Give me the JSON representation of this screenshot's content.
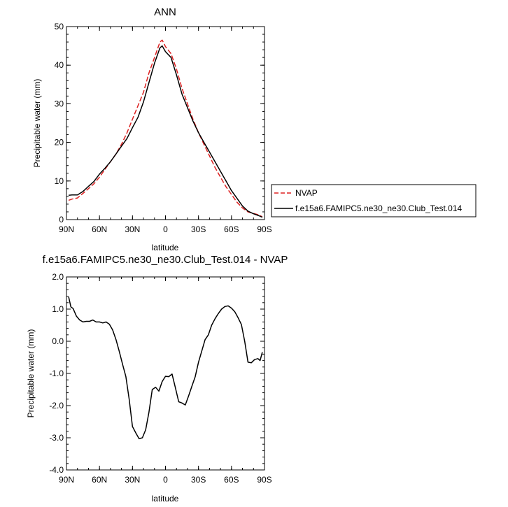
{
  "chart_data": [
    {
      "type": "line",
      "title": "ANN",
      "xlabel": "latitude",
      "ylabel": "Precipitable water (mm)",
      "xlim": [
        90,
        -90
      ],
      "ylim": [
        0,
        50
      ],
      "x_ticks": [
        90,
        60,
        30,
        0,
        -30,
        -60,
        -90
      ],
      "x_tick_labels": [
        "90N",
        "60N",
        "30N",
        "0",
        "30S",
        "60S",
        "90S"
      ],
      "y_ticks": [
        0,
        10,
        20,
        30,
        40,
        50
      ],
      "y_tick_labels": [
        "0",
        "10",
        "20",
        "30",
        "40",
        "50"
      ],
      "grid": false,
      "legend": "right",
      "series": [
        {
          "name": "NVAP",
          "color": "#dd2222",
          "dash": "dashed",
          "x": [
            88,
            85,
            80,
            75,
            70,
            65,
            60,
            55,
            50,
            45,
            40,
            35,
            30,
            25,
            20,
            15,
            10,
            5,
            3,
            0,
            -5,
            -10,
            -15,
            -20,
            -25,
            -30,
            -35,
            -40,
            -45,
            -50,
            -55,
            -60,
            -65,
            -70,
            -75,
            -80,
            -85,
            -88
          ],
          "y": [
            5.0,
            5.3,
            5.6,
            6.8,
            8.0,
            9.3,
            11.0,
            13.0,
            15.0,
            17.0,
            19.5,
            22.5,
            26.0,
            29.5,
            33.0,
            38.0,
            42.0,
            46.0,
            46.5,
            44.8,
            43.0,
            39.0,
            34.0,
            30.0,
            26.0,
            22.5,
            19.5,
            16.5,
            13.5,
            11.0,
            8.5,
            6.5,
            4.5,
            3.0,
            2.0,
            1.6,
            1.2,
            0.7
          ]
        },
        {
          "name": "f.e15a6.FAMIPC5.ne30_ne30.Club_Test.014",
          "color": "#000000",
          "dash": "solid",
          "x": [
            88,
            85,
            80,
            75,
            70,
            65,
            60,
            55,
            50,
            45,
            40,
            35,
            30,
            25,
            20,
            15,
            10,
            5,
            3,
            0,
            -5,
            -10,
            -15,
            -20,
            -25,
            -30,
            -35,
            -40,
            -45,
            -50,
            -55,
            -60,
            -65,
            -70,
            -75,
            -80,
            -85,
            -88
          ],
          "y": [
            6.3,
            6.4,
            6.4,
            7.3,
            8.6,
            9.9,
            11.8,
            13.3,
            15.0,
            17.0,
            19.0,
            21.0,
            23.8,
            26.5,
            30.5,
            35.5,
            40.5,
            44.5,
            45.0,
            43.5,
            42.0,
            37.5,
            32.5,
            29.0,
            25.5,
            22.5,
            20.0,
            17.5,
            15.0,
            12.5,
            10.0,
            7.5,
            5.5,
            3.5,
            2.2,
            1.5,
            1.0,
            0.6
          ]
        }
      ]
    },
    {
      "type": "line",
      "title": "f.e15a6.FAMIPC5.ne30_ne30.Club_Test.014 - NVAP",
      "xlabel": "latitude",
      "ylabel": "Precipitable water (mm)",
      "xlim": [
        90,
        -90
      ],
      "ylim": [
        -4.0,
        2.0
      ],
      "x_ticks": [
        90,
        60,
        30,
        0,
        -30,
        -60,
        -90
      ],
      "x_tick_labels": [
        "90N",
        "60N",
        "30N",
        "0",
        "30S",
        "60S",
        "90S"
      ],
      "y_ticks": [
        -4.0,
        -3.0,
        -2.0,
        -1.0,
        0.0,
        1.0,
        2.0
      ],
      "y_tick_labels": [
        "-4.0",
        "-3.0",
        "-2.0",
        "-1.0",
        "0.0",
        "1.0",
        "2.0"
      ],
      "grid": false,
      "series": [
        {
          "color": "#000000",
          "dash": "solid",
          "x": [
            88,
            86,
            84,
            81,
            78,
            75,
            72,
            69,
            66,
            63,
            60,
            57,
            54,
            51,
            48,
            45,
            42,
            39,
            36,
            33,
            30,
            27,
            24,
            21,
            18,
            15,
            12,
            9,
            6,
            3,
            0,
            -3,
            -6,
            -9,
            -12,
            -15,
            -18,
            -21,
            -24,
            -27,
            -30,
            -33,
            -36,
            -39,
            -42,
            -45,
            -48,
            -51,
            -54,
            -57,
            -60,
            -63,
            -66,
            -69,
            -72,
            -75,
            -78,
            -81,
            -84,
            -86,
            -88
          ],
          "y": [
            1.38,
            1.07,
            1.02,
            0.78,
            0.66,
            0.6,
            0.62,
            0.62,
            0.66,
            0.6,
            0.6,
            0.57,
            0.6,
            0.53,
            0.35,
            0.05,
            -0.32,
            -0.72,
            -1.1,
            -1.8,
            -2.65,
            -2.85,
            -3.03,
            -3.0,
            -2.75,
            -2.2,
            -1.5,
            -1.43,
            -1.55,
            -1.25,
            -1.09,
            -1.1,
            -1.02,
            -1.45,
            -1.88,
            -1.92,
            -1.98,
            -1.7,
            -1.4,
            -1.1,
            -0.65,
            -0.3,
            0.05,
            0.2,
            0.5,
            0.7,
            0.86,
            1.0,
            1.08,
            1.1,
            1.03,
            0.92,
            0.73,
            0.52,
            0.0,
            -0.65,
            -0.67,
            -0.57,
            -0.54,
            -0.6,
            -0.34
          ]
        }
      ]
    }
  ]
}
